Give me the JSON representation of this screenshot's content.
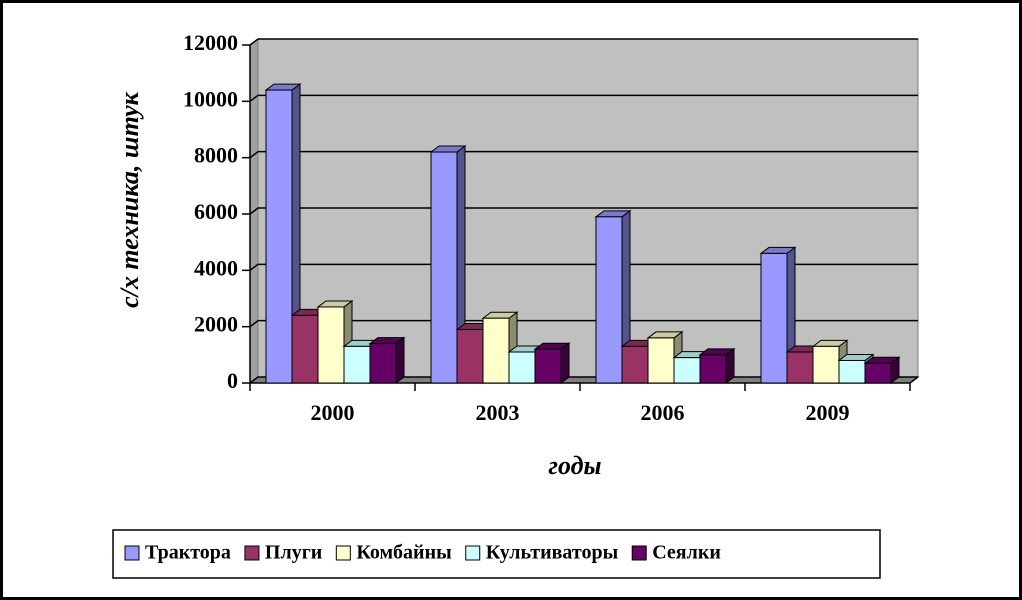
{
  "chart_data": {
    "type": "bar3d",
    "categories": [
      "2000",
      "2003",
      "2006",
      "2009"
    ],
    "series": [
      {
        "name": "Трактора",
        "color": "#9999ff",
        "values": [
          10400,
          8200,
          5900,
          4600
        ]
      },
      {
        "name": "Плуги",
        "color": "#993366",
        "values": [
          2400,
          1900,
          1300,
          1100
        ]
      },
      {
        "name": "Комбайны",
        "color": "#ffffcc",
        "values": [
          2700,
          2300,
          1600,
          1300
        ]
      },
      {
        "name": "Культиваторы",
        "color": "#ccffff",
        "values": [
          1300,
          1100,
          900,
          800
        ]
      },
      {
        "name": "Сеялки",
        "color": "#660066",
        "values": [
          1400,
          1200,
          1000,
          700
        ]
      }
    ],
    "ylim": [
      0,
      12000
    ],
    "yticks": [
      0,
      2000,
      4000,
      6000,
      8000,
      10000,
      12000
    ],
    "y_label": "с/х техника, штук",
    "x_label": "годы",
    "grid": true,
    "legend": "bottom"
  }
}
